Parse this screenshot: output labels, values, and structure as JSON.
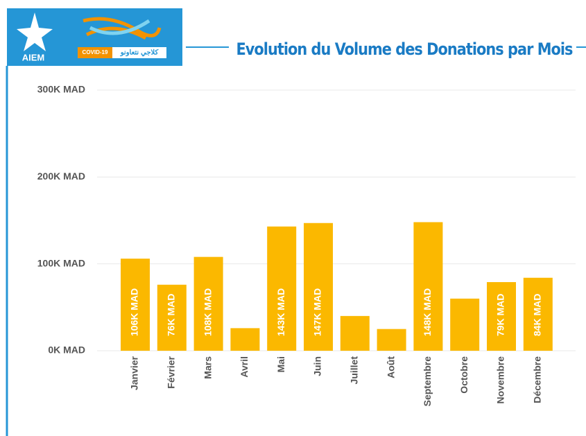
{
  "logo": {
    "name": "AIEM",
    "tag": "COVID-19",
    "slogan": "كلاجي نتعاونو"
  },
  "chart_data": {
    "type": "bar",
    "title": "Evolution du Volume des Donations par Mois",
    "categories": [
      "Janvier",
      "Février",
      "Mars",
      "Avril",
      "Mai",
      "Juin",
      "Juillet",
      "Août",
      "Septembre",
      "Octobre",
      "Novembre",
      "Décembre"
    ],
    "values": [
      106000,
      76000,
      108000,
      26000,
      143000,
      147000,
      40000,
      25000,
      148000,
      60000,
      79000,
      84000
    ],
    "value_labels": [
      "106K MAD",
      "76K MAD",
      "108K MAD",
      null,
      "143K MAD",
      "147K MAD",
      null,
      null,
      "148K MAD",
      null,
      "79K MAD",
      "84K MAD"
    ],
    "color": "#fbb800",
    "ylim": [
      0,
      300000
    ],
    "yticks": [
      {
        "value": 0,
        "label": "0K MAD"
      },
      {
        "value": 100000,
        "label": "100K MAD"
      },
      {
        "value": 200000,
        "label": "200K MAD"
      },
      {
        "value": 300000,
        "label": "300K MAD"
      }
    ],
    "grid": true
  }
}
